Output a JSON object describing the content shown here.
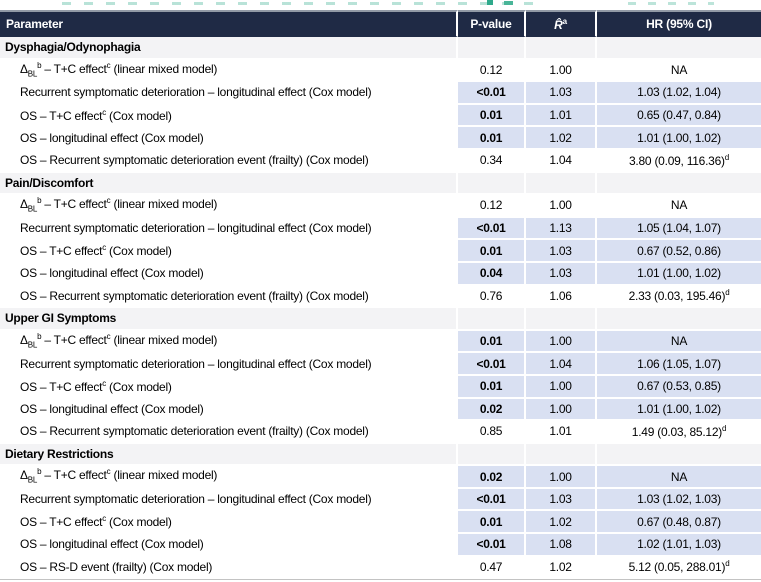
{
  "table": {
    "header": {
      "parameter": "Parameter",
      "p_value": "P-value",
      "r_hat": "R̂",
      "r_hat_sup": "a",
      "hr": "HR (95% CI)"
    },
    "colors": {
      "header_bg": "#1f2a45",
      "highlight_bg": "#d9e0f2",
      "section_bg": "#f3f3f5",
      "title_fragment_teal": "#2ea98b"
    },
    "sections": [
      {
        "title": "Dysphagia/Odynophagia",
        "rows": [
          {
            "label_parts": [
              {
                "t": "Δ"
              },
              {
                "sub": "BL"
              },
              {
                "sup": "b"
              },
              {
                "t": " – T+C effect"
              },
              {
                "sup": "c"
              },
              {
                "t": " (linear mixed model)"
              }
            ],
            "p": "0.12",
            "bold": false,
            "highlight": false,
            "r": "1.00",
            "hr": "NA",
            "hr_sup": ""
          },
          {
            "label_parts": [
              {
                "t": "Recurrent symptomatic deterioration – longitudinal effect (Cox model)"
              }
            ],
            "p": "<0.01",
            "bold": true,
            "highlight": true,
            "r": "1.03",
            "hr": "1.03 (1.02, 1.04)",
            "hr_sup": ""
          },
          {
            "label_parts": [
              {
                "t": "OS – T+C effect"
              },
              {
                "sup": "c"
              },
              {
                "t": " (Cox model)"
              }
            ],
            "p": "0.01",
            "bold": true,
            "highlight": true,
            "r": "1.01",
            "hr": "0.65 (0.47, 0.84)",
            "hr_sup": ""
          },
          {
            "label_parts": [
              {
                "t": "OS – longitudinal effect (Cox model)"
              }
            ],
            "p": "0.01",
            "bold": true,
            "highlight": true,
            "r": "1.02",
            "hr": "1.01 (1.00, 1.02)",
            "hr_sup": ""
          },
          {
            "label_parts": [
              {
                "t": "OS – Recurrent symptomatic deterioration event (frailty) (Cox model)"
              }
            ],
            "p": "0.34",
            "bold": false,
            "highlight": false,
            "r": "1.04",
            "hr": "3.80 (0.09, 116.36)",
            "hr_sup": "d"
          }
        ]
      },
      {
        "title": "Pain/Discomfort",
        "rows": [
          {
            "label_parts": [
              {
                "t": "Δ"
              },
              {
                "sub": "BL"
              },
              {
                "sup": "b"
              },
              {
                "t": " – T+C effect"
              },
              {
                "sup": "c"
              },
              {
                "t": " (linear mixed model)"
              }
            ],
            "p": "0.12",
            "bold": false,
            "highlight": false,
            "r": "1.00",
            "hr": "NA",
            "hr_sup": ""
          },
          {
            "label_parts": [
              {
                "t": "Recurrent symptomatic deterioration – longitudinal effect (Cox model)"
              }
            ],
            "p": "<0.01",
            "bold": true,
            "highlight": true,
            "r": "1.13",
            "hr": "1.05 (1.04, 1.07)",
            "hr_sup": ""
          },
          {
            "label_parts": [
              {
                "t": "OS – T+C effect"
              },
              {
                "sup": "c"
              },
              {
                "t": " (Cox model)"
              }
            ],
            "p": "0.01",
            "bold": true,
            "highlight": true,
            "r": "1.03",
            "hr": "0.67 (0.52, 0.86)",
            "hr_sup": ""
          },
          {
            "label_parts": [
              {
                "t": "OS – longitudinal effect (Cox model)"
              }
            ],
            "p": "0.04",
            "bold": true,
            "highlight": true,
            "r": "1.03",
            "hr": "1.01 (1.00, 1.02)",
            "hr_sup": ""
          },
          {
            "label_parts": [
              {
                "t": "OS – Recurrent symptomatic deterioration event (frailty) (Cox model)"
              }
            ],
            "p": "0.76",
            "bold": false,
            "highlight": false,
            "r": "1.06",
            "hr": "2.33 (0.03, 195.46)",
            "hr_sup": "d"
          }
        ]
      },
      {
        "title": "Upper GI Symptoms",
        "rows": [
          {
            "label_parts": [
              {
                "t": "Δ"
              },
              {
                "sub": "BL"
              },
              {
                "sup": "b"
              },
              {
                "t": " – T+C effect"
              },
              {
                "sup": "c"
              },
              {
                "t": " (linear mixed model)"
              }
            ],
            "p": "0.01",
            "bold": true,
            "highlight": true,
            "r": "1.00",
            "hr": "NA",
            "hr_sup": ""
          },
          {
            "label_parts": [
              {
                "t": "Recurrent symptomatic deterioration – longitudinal effect (Cox model)"
              }
            ],
            "p": "<0.01",
            "bold": true,
            "highlight": true,
            "r": "1.04",
            "hr": "1.06 (1.05, 1.07)",
            "hr_sup": ""
          },
          {
            "label_parts": [
              {
                "t": "OS – T+C effect"
              },
              {
                "sup": "c"
              },
              {
                "t": " (Cox model)"
              }
            ],
            "p": "0.01",
            "bold": true,
            "highlight": true,
            "r": "1.00",
            "hr": "0.67 (0.53, 0.85)",
            "hr_sup": ""
          },
          {
            "label_parts": [
              {
                "t": "OS – longitudinal effect (Cox model)"
              }
            ],
            "p": "0.02",
            "bold": true,
            "highlight": true,
            "r": "1.00",
            "hr": "1.01 (1.00, 1.02)",
            "hr_sup": ""
          },
          {
            "label_parts": [
              {
                "t": "OS – Recurrent symptomatic deterioration event (frailty) (Cox model)"
              }
            ],
            "p": "0.85",
            "bold": false,
            "highlight": false,
            "r": "1.01",
            "hr": "1.49 (0.03, 85.12)",
            "hr_sup": "d"
          }
        ]
      },
      {
        "title": "Dietary Restrictions",
        "rows": [
          {
            "label_parts": [
              {
                "t": "Δ"
              },
              {
                "sub": "BL"
              },
              {
                "sup": "b"
              },
              {
                "t": " – T+C effect"
              },
              {
                "sup": "c"
              },
              {
                "t": " (linear mixed model)"
              }
            ],
            "p": "0.02",
            "bold": true,
            "highlight": true,
            "r": "1.00",
            "hr": "NA",
            "hr_sup": ""
          },
          {
            "label_parts": [
              {
                "t": "Recurrent symptomatic deterioration – longitudinal effect (Cox model)"
              }
            ],
            "p": "<0.01",
            "bold": true,
            "highlight": true,
            "r": "1.03",
            "hr": "1.03 (1.02, 1.03)",
            "hr_sup": ""
          },
          {
            "label_parts": [
              {
                "t": "OS – T+C effect"
              },
              {
                "sup": "c"
              },
              {
                "t": " (Cox model)"
              }
            ],
            "p": "0.01",
            "bold": true,
            "highlight": true,
            "r": "1.02",
            "hr": "0.67 (0.48, 0.87)",
            "hr_sup": ""
          },
          {
            "label_parts": [
              {
                "t": "OS – longitudinal effect (Cox model)"
              }
            ],
            "p": "<0.01",
            "bold": true,
            "highlight": true,
            "r": "1.08",
            "hr": "1.02 (1.01, 1.03)",
            "hr_sup": ""
          },
          {
            "label_parts": [
              {
                "t": "OS – RS-D event (frailty) (Cox model)"
              }
            ],
            "p": "0.47",
            "bold": false,
            "highlight": false,
            "r": "1.02",
            "hr": "5.12 (0.05, 288.01)",
            "hr_sup": "d"
          }
        ]
      }
    ]
  }
}
